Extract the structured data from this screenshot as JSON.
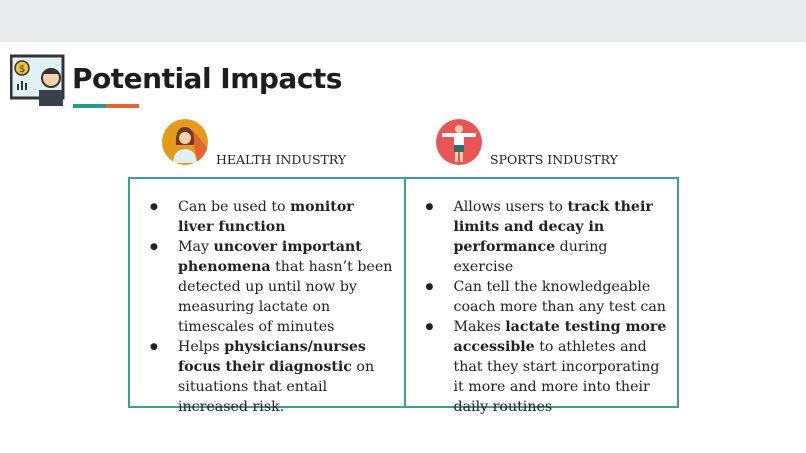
{
  "title": "Potential Impacts",
  "colors": {
    "teal": "#3a9e94",
    "orange": "#e2652f"
  },
  "columns": [
    {
      "header": "HEALTH INDUSTRY",
      "icon": "doctor-avatar-icon",
      "bullets": [
        [
          {
            "t": "Can be used to "
          },
          {
            "t": "monitor liver function",
            "b": true
          }
        ],
        [
          {
            "t": "May "
          },
          {
            "t": "uncover important phenomena",
            "b": true
          },
          {
            "t": " that hasn’t been detected up until now by measuring lactate on timescales of minutes"
          }
        ],
        [
          {
            "t": "Helps "
          },
          {
            "t": "physicians/nurses focus their diagnostic",
            "b": true
          },
          {
            "t": " on situations that entail increased risk."
          }
        ]
      ]
    },
    {
      "header": "SPORTS INDUSTRY",
      "icon": "athlete-avatar-icon",
      "bullets": [
        [
          {
            "t": "Allows users to "
          },
          {
            "t": "track their limits and decay in performance",
            "b": true
          },
          {
            "t": " during exercise"
          }
        ],
        [
          {
            "t": "Can tell the knowledgeable coach more than any test can"
          }
        ],
        [
          {
            "t": "Makes "
          },
          {
            "t": "lactate testing more accessible",
            "b": true
          },
          {
            "t": " to athletes and that they start incorporating it more and more into their daily routines"
          }
        ]
      ]
    }
  ]
}
